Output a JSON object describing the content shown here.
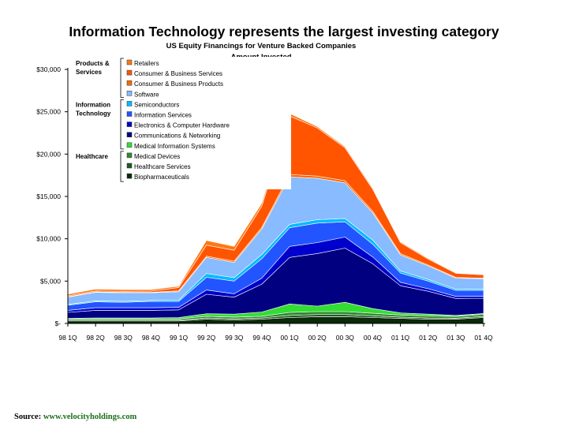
{
  "slide": {
    "title": "Information Technology represents the largest investing category",
    "source_label": "Source:",
    "source_url": "www.velocityholdings.com"
  },
  "chart_data": {
    "type": "area",
    "stacked": true,
    "title": "US Equity Financings for Venture Backed Companies",
    "subtitle": "Amount Invested",
    "xlabel": "",
    "ylabel": "",
    "ylim": [
      0,
      30000
    ],
    "y_ticks": [
      0,
      5000,
      10000,
      15000,
      20000,
      25000,
      30000
    ],
    "y_tick_labels": [
      "$-",
      "$5,000",
      "$10,000",
      "$15,000",
      "$20,000",
      "$25,000",
      "$30,000"
    ],
    "categories": [
      "98 1Q",
      "98 2Q",
      "98 3Q",
      "98 4Q",
      "99 1Q",
      "99 2Q",
      "99 3Q",
      "99 4Q",
      "00 1Q",
      "00 2Q",
      "00 3Q",
      "00 4Q",
      "01 1Q",
      "01 2Q",
      "01 3Q",
      "01 4Q"
    ],
    "legend_position": "top-left",
    "legend_groups": [
      {
        "label": "Products & Services",
        "first_series": "Retailers"
      },
      {
        "label": "Information Technology",
        "first_series": "Semiconductors"
      },
      {
        "label": "Healthcare",
        "first_series": "Medical Devices"
      }
    ],
    "series": [
      {
        "name": "Biopharmaceuticals",
        "color": "#0a2a0a",
        "values": [
          300,
          300,
          300,
          300,
          300,
          500,
          400,
          500,
          700,
          800,
          800,
          700,
          600,
          500,
          500,
          700
        ]
      },
      {
        "name": "Healthcare Services",
        "color": "#1e5a1e",
        "values": [
          100,
          100,
          100,
          100,
          100,
          150,
          150,
          150,
          250,
          250,
          250,
          200,
          150,
          150,
          120,
          120
        ]
      },
      {
        "name": "Medical Devices",
        "color": "#2e8b2e",
        "values": [
          150,
          150,
          150,
          150,
          150,
          200,
          200,
          200,
          350,
          350,
          350,
          300,
          250,
          250,
          200,
          250
        ]
      },
      {
        "name": "Medical Information Systems",
        "color": "#33dd33",
        "values": [
          50,
          100,
          100,
          100,
          150,
          300,
          350,
          500,
          1000,
          650,
          1100,
          550,
          250,
          200,
          130,
          100
        ]
      },
      {
        "name": "Communications & Networking",
        "color": "#000080",
        "values": [
          700,
          900,
          900,
          900,
          900,
          2300,
          2000,
          3300,
          5500,
          6200,
          6400,
          5300,
          3200,
          2700,
          2000,
          1800
        ]
      },
      {
        "name": "Electronics & Computer Hardware",
        "color": "#0000cc",
        "values": [
          250,
          300,
          300,
          300,
          300,
          500,
          400,
          700,
          1300,
          1300,
          1300,
          800,
          400,
          300,
          250,
          250
        ]
      },
      {
        "name": "Information Services",
        "color": "#2255ff",
        "values": [
          600,
          700,
          650,
          750,
          700,
          1500,
          1500,
          2300,
          2200,
          2300,
          1800,
          1500,
          1100,
          900,
          700,
          700
        ]
      },
      {
        "name": "Semiconductors",
        "color": "#00bbff",
        "values": [
          100,
          120,
          120,
          120,
          150,
          450,
          400,
          500,
          400,
          400,
          400,
          500,
          250,
          200,
          150,
          150
        ]
      },
      {
        "name": "Software",
        "color": "#88bbff",
        "values": [
          850,
          1000,
          1000,
          900,
          1000,
          1900,
          1800,
          3000,
          5600,
          4900,
          4200,
          3200,
          1900,
          1600,
          1300,
          1200
        ]
      },
      {
        "name": "Consumer & Business Products",
        "color": "#ff6600",
        "values": [
          50,
          50,
          50,
          50,
          100,
          150,
          150,
          200,
          300,
          250,
          250,
          200,
          150,
          100,
          80,
          80
        ]
      },
      {
        "name": "Consumer & Business Services",
        "color": "#ff5500",
        "values": [
          120,
          120,
          120,
          150,
          400,
          1300,
          1300,
          2500,
          6900,
          5700,
          3900,
          2600,
          1300,
          700,
          500,
          400
        ]
      },
      {
        "name": "Retailers",
        "color": "#ff7711",
        "values": [
          180,
          210,
          210,
          180,
          150,
          550,
          450,
          350,
          300,
          150,
          150,
          150,
          100,
          100,
          50,
          50
        ]
      }
    ]
  }
}
